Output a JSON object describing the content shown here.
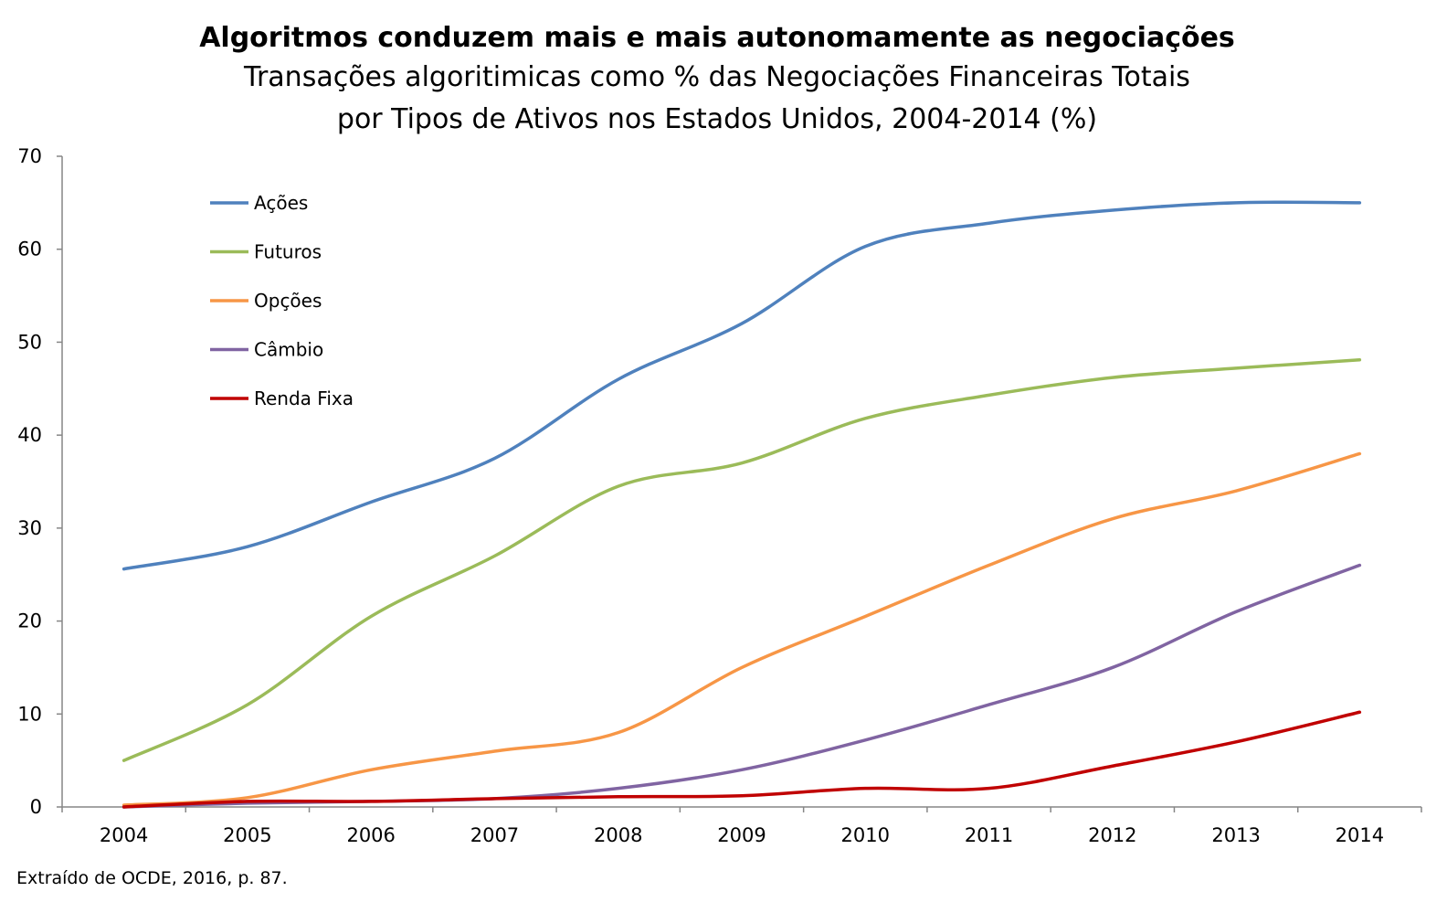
{
  "chart_data": {
    "type": "line",
    "title": "Algoritmos conduzem mais e mais autonomamente as negociações",
    "subtitle": [
      "Transações algoritimicas como % das Negociações Financeiras Totais",
      "por Tipos de Ativos nos Estados Unidos, 2004-2014 (%)"
    ],
    "xlabel": "",
    "ylabel": "",
    "categories": [
      "2004",
      "2005",
      "2006",
      "2007",
      "2008",
      "2009",
      "2010",
      "2011",
      "2012",
      "2013",
      "2014"
    ],
    "ylim": [
      0,
      70
    ],
    "yticks": [
      0,
      10,
      20,
      30,
      40,
      50,
      60,
      70
    ],
    "grid": false,
    "legend": "top-left",
    "series": [
      {
        "name": "Ações",
        "color": "#4f81bd",
        "values": [
          25.6,
          28,
          32.8,
          37.5,
          46,
          52,
          60.3,
          62.8,
          64.2,
          65,
          65
        ]
      },
      {
        "name": "Futuros",
        "color": "#9bbb59",
        "values": [
          5,
          11,
          20.5,
          27,
          34.5,
          37,
          41.8,
          44.3,
          46.2,
          47.2,
          48.1
        ]
      },
      {
        "name": "Opções",
        "color": "#f79646",
        "values": [
          0.2,
          1,
          4,
          6,
          8,
          15,
          20.5,
          26,
          31,
          34,
          38
        ]
      },
      {
        "name": "Câmbio",
        "color": "#8064a2",
        "values": [
          0,
          0.4,
          0.6,
          0.9,
          2,
          4,
          7.2,
          11,
          15,
          21,
          26
        ]
      },
      {
        "name": "Renda Fixa",
        "color": "#c00000",
        "values": [
          0,
          0.6,
          0.6,
          0.9,
          1.1,
          1.2,
          2,
          2,
          4.4,
          7,
          10.2
        ]
      }
    ]
  },
  "source": "Extraído de OCDE, 2016, p. 87."
}
